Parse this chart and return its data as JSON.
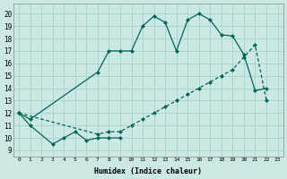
{
  "xlabel": "Humidex (Indice chaleur)",
  "bg_color": "#cce8e4",
  "grid_color": "#aad4cc",
  "line_color": "#006655",
  "xlim": [
    -0.5,
    23.5
  ],
  "ylim": [
    8.5,
    20.8
  ],
  "xticks": [
    0,
    1,
    2,
    3,
    4,
    5,
    6,
    7,
    8,
    9,
    10,
    11,
    12,
    13,
    14,
    15,
    16,
    17,
    18,
    19,
    20,
    21,
    22,
    23
  ],
  "yticks": [
    9,
    10,
    11,
    12,
    13,
    14,
    15,
    16,
    17,
    18,
    19,
    20
  ],
  "line1_x": [
    0,
    1,
    3,
    4,
    5,
    6,
    7,
    8,
    9
  ],
  "line1_y": [
    12,
    11,
    9.5,
    10,
    10.5,
    9.8,
    10,
    10,
    10
  ],
  "line2_x": [
    0,
    1,
    7,
    8,
    9,
    10,
    11,
    12,
    13,
    14,
    15,
    16,
    17,
    18,
    19,
    20,
    21,
    22
  ],
  "line2_y": [
    12,
    11.5,
    15.3,
    17,
    17,
    17,
    19,
    19.8,
    19.3,
    17,
    19.5,
    20,
    19.5,
    18.3,
    18.2,
    16.7,
    13.8,
    14
  ],
  "line3_x": [
    0,
    7,
    8,
    9,
    10,
    11,
    12,
    13,
    14,
    15,
    16,
    17,
    18,
    19,
    20,
    21,
    22
  ],
  "line3_y": [
    12,
    10.3,
    10.5,
    10.5,
    11,
    11.5,
    12,
    12.5,
    13,
    13.5,
    14,
    14.5,
    15,
    15.5,
    16.5,
    17.5,
    13
  ]
}
